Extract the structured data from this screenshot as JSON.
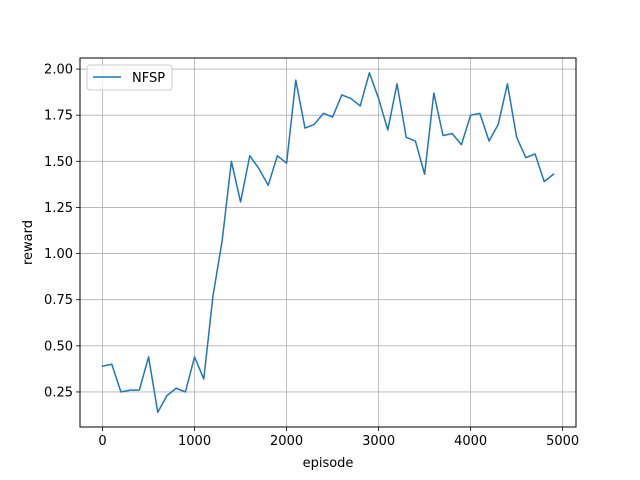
{
  "chart_data": {
    "type": "line",
    "xlabel": "episode",
    "ylabel": "reward",
    "xlim": [
      -245,
      5145
    ],
    "ylim": [
      0.06,
      2.06
    ],
    "xticks": [
      0,
      1000,
      2000,
      3000,
      4000,
      5000
    ],
    "yticks": [
      0.25,
      0.5,
      0.75,
      1.0,
      1.25,
      1.5,
      1.75,
      2.0
    ],
    "xtick_labels": [
      "0",
      "1000",
      "2000",
      "3000",
      "4000",
      "5000"
    ],
    "ytick_labels": [
      "0.25",
      "0.50",
      "0.75",
      "1.00",
      "1.25",
      "1.50",
      "1.75",
      "2.00"
    ],
    "grid": true,
    "legend": {
      "position": "top-left"
    },
    "colors": {
      "line": "#1f77b4",
      "grid": "#b0b0b0",
      "legend_border": "#cccccc"
    },
    "series": [
      {
        "name": "NFSP",
        "x": [
          0,
          100,
          200,
          300,
          400,
          500,
          600,
          700,
          800,
          900,
          1000,
          1100,
          1200,
          1300,
          1400,
          1500,
          1600,
          1700,
          1800,
          1900,
          2000,
          2100,
          2200,
          2300,
          2400,
          2500,
          2600,
          2700,
          2800,
          2900,
          3000,
          3100,
          3200,
          3300,
          3400,
          3500,
          3600,
          3700,
          3800,
          3900,
          4000,
          4100,
          4200,
          4300,
          4400,
          4500,
          4600,
          4700,
          4800,
          4900
        ],
        "values": [
          0.39,
          0.4,
          0.25,
          0.26,
          0.26,
          0.44,
          0.14,
          0.23,
          0.27,
          0.25,
          0.44,
          0.32,
          0.77,
          1.07,
          1.5,
          1.28,
          1.53,
          1.46,
          1.37,
          1.53,
          1.49,
          1.94,
          1.68,
          1.7,
          1.76,
          1.74,
          1.86,
          1.84,
          1.8,
          1.98,
          1.84,
          1.67,
          1.92,
          1.63,
          1.61,
          1.43,
          1.87,
          1.64,
          1.65,
          1.59,
          1.75,
          1.76,
          1.61,
          1.7,
          1.92,
          1.63,
          1.52,
          1.54,
          1.39,
          1.43
        ]
      }
    ]
  }
}
